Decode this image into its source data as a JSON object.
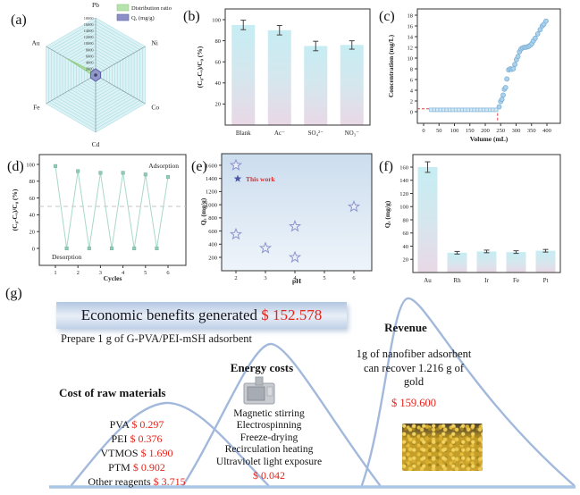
{
  "panel_labels": {
    "a": "(a)",
    "b": "(b)",
    "c": "(c)",
    "d": "(d)",
    "e": "(e)",
    "f": "(f)",
    "g": "(g)"
  },
  "chart_data": [
    {
      "id": "radar-selectivity",
      "type": "radar",
      "axes": [
        "Pb",
        "Ni",
        "Co",
        "Cd",
        "Fe",
        "Au"
      ],
      "rmax": 18000,
      "rtick_labels": [
        "2000",
        "4000",
        "6000",
        "8000",
        "10000",
        "12000",
        "14000",
        "16000",
        "18000"
      ],
      "legend": [
        {
          "label": "Distribution ratio",
          "color": "#b5e3ab",
          "stroke": "#8fcc84"
        },
        {
          "label": "Qₑ (mg/g)",
          "color": "#8d90c7",
          "stroke": "#5d62a8"
        }
      ],
      "series": [
        {
          "name": "Distribution ratio",
          "color": "#b5e3ab",
          "stroke": "#8fcc84",
          "values": [
            600,
            200,
            200,
            200,
            600,
            10500
          ]
        },
        {
          "name": "Qe (mg/g)",
          "color": "#8d90c7",
          "stroke": "#5d62a8",
          "values": [
            2000,
            1800,
            1800,
            2000,
            1800,
            1800
          ]
        }
      ],
      "grid_color": "#a9dde4",
      "bg_color": "#ddf2f5"
    },
    {
      "id": "anion-effect",
      "type": "bar",
      "categories": [
        "Blank",
        "Ac⁻",
        "SO₄²⁻",
        "NO₃⁻"
      ],
      "values": [
        95,
        90,
        75,
        76
      ],
      "errors": [
        4.5,
        4.5,
        4.5,
        4
      ],
      "ylabel": "(C₀-Cₑ)/C₀ (%)",
      "yticks": [
        20,
        40,
        60,
        80,
        100
      ],
      "ylim": [
        0,
        110
      ]
    },
    {
      "id": "breakthrough",
      "type": "scatter",
      "xlabel": "Volume (mL)",
      "ylabel": "Concentration (mg/L)",
      "xticks": [
        0,
        50,
        100,
        150,
        200,
        250,
        300,
        350,
        400
      ],
      "yticks": [
        0,
        2,
        4,
        6,
        8,
        10,
        12,
        14,
        16,
        18
      ],
      "flat_series": {
        "x_start": 25,
        "x_end": 235,
        "x_step": 10,
        "y": 0.35,
        "marker": "square"
      },
      "rise_series": [
        [
          245,
          0.9
        ],
        [
          250,
          1.9
        ],
        [
          254,
          2.3
        ],
        [
          258,
          3.1
        ],
        [
          262,
          4.2
        ],
        [
          266,
          4.5
        ],
        [
          270,
          6.1
        ],
        [
          276,
          7.8
        ],
        [
          281,
          8.0
        ],
        [
          286,
          7.9
        ],
        [
          291,
          8.0
        ],
        [
          296,
          8.8
        ],
        [
          301,
          9.7
        ],
        [
          306,
          10.3
        ],
        [
          311,
          11.2
        ],
        [
          316,
          11.7
        ],
        [
          321,
          11.9
        ],
        [
          326,
          12.0
        ],
        [
          331,
          12.0
        ],
        [
          336,
          12.1
        ],
        [
          341,
          12.2
        ],
        [
          346,
          12.4
        ],
        [
          351,
          12.7
        ],
        [
          356,
          13.2
        ],
        [
          362,
          13.7
        ],
        [
          370,
          14.5
        ],
        [
          378,
          15.3
        ],
        [
          385,
          16.0
        ],
        [
          390,
          16.3
        ],
        [
          397,
          16.9
        ]
      ],
      "breakthrough_line": {
        "y": 0.55,
        "x": 240,
        "color": "#e34040"
      }
    },
    {
      "id": "cycles",
      "type": "line",
      "xlabel": "Cycles",
      "ylabel": "(C₀-Cₑ)/C₀ (%)",
      "xticks": [
        1,
        2,
        3,
        4,
        5,
        6
      ],
      "yticks": [
        0,
        20,
        40,
        60,
        80,
        100
      ],
      "points": [
        [
          1,
          98
        ],
        [
          1.5,
          0
        ],
        [
          2,
          92
        ],
        [
          2.5,
          0
        ],
        [
          3,
          90
        ],
        [
          3.5,
          0
        ],
        [
          4,
          90
        ],
        [
          4.5,
          0
        ],
        [
          5,
          88
        ],
        [
          5.5,
          0
        ],
        [
          6,
          85
        ]
      ],
      "ref_line_y": 50,
      "annotation_top": "Adsorption",
      "annotation_bottom": "Desorption",
      "line_color": "#a8d8c8"
    },
    {
      "id": "ph-comparison",
      "type": "scatter",
      "xlabel": "pH",
      "ylabel": "Qₑ (mg/g)",
      "xticks": [
        2,
        3,
        4,
        5,
        6
      ],
      "yticks": [
        200,
        400,
        600,
        800,
        1000,
        1200,
        1400,
        1600
      ],
      "points": [
        [
          2,
          1600
        ],
        [
          2,
          550
        ],
        [
          3,
          340
        ],
        [
          4,
          670
        ],
        [
          4,
          200
        ],
        [
          6,
          970
        ]
      ],
      "legend": {
        "label": "This work",
        "text_color": "#d93030",
        "marker": "star"
      }
    },
    {
      "id": "metal-selectivity",
      "type": "bar",
      "categories": [
        "Au",
        "Rh",
        "Ir",
        "Fe",
        "Pt"
      ],
      "values": [
        160,
        30,
        32,
        31,
        33
      ],
      "errors": [
        8,
        2,
        2,
        2,
        2
      ],
      "ylabel": "Qₑ (mg/g)",
      "yticks": [
        20,
        40,
        60,
        80,
        100,
        120,
        140,
        160
      ],
      "ylim": [
        0,
        180
      ]
    }
  ],
  "economics": {
    "banner_title": "Economic benefits generated",
    "banner_amount": "$ 152.578",
    "subtitle": "Prepare 1 g of G-PVA/PEI-mSH adsorbent",
    "raw_materials": {
      "title": "Cost of raw materials",
      "items": [
        {
          "name": "PVA",
          "price": "$ 0.297"
        },
        {
          "name": "PEI",
          "price": "$ 0.376"
        },
        {
          "name": "VTMOS",
          "price": "$ 1.690"
        },
        {
          "name": "PTM",
          "price": "$ 0.902"
        },
        {
          "name": "Other reagents",
          "price": "$ 3.715"
        }
      ]
    },
    "energy": {
      "title": "Energy costs",
      "items": [
        "Magnetic stirring",
        "Electrospinning",
        "Freeze-drying",
        "Recirculation heating",
        "Ultraviolet light exposure"
      ],
      "price": "$ 0.042"
    },
    "revenue": {
      "title": "Revenue",
      "description": "1g of nanofiber adsorbent can recover 1.216 g of gold",
      "price": "$ 159.600"
    }
  }
}
